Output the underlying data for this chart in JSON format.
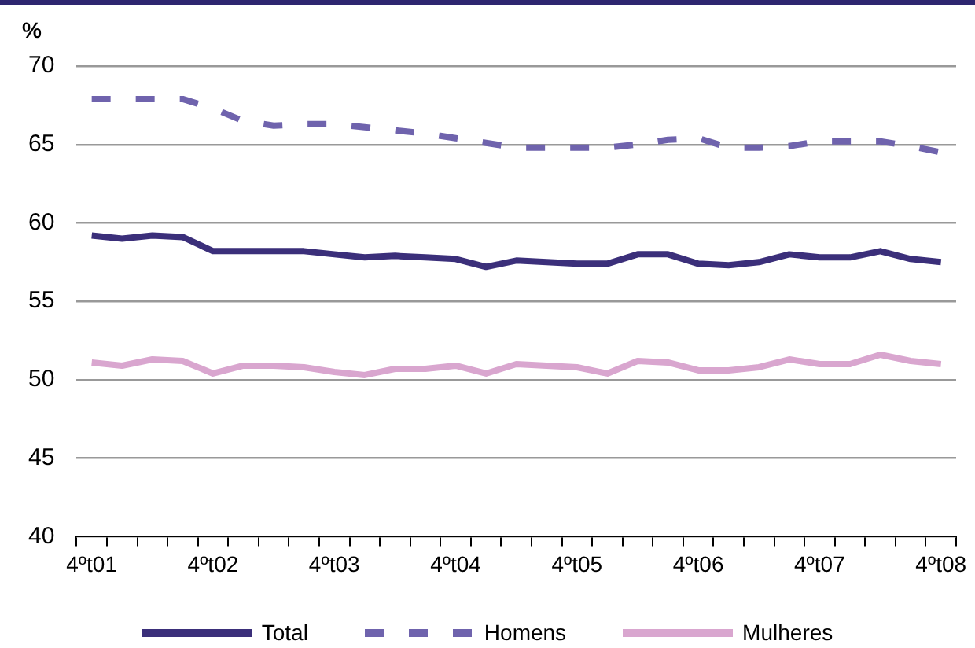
{
  "chart_data": {
    "type": "line",
    "ylabel": "%",
    "categories": [
      "4ºt01",
      null,
      null,
      null,
      "4ºt02",
      null,
      null,
      null,
      "4ºt03",
      null,
      null,
      null,
      "4ºt04",
      null,
      null,
      null,
      "4ºt05",
      null,
      null,
      null,
      "4ºt06",
      null,
      null,
      null,
      "4ºt07",
      null,
      null,
      null,
      "4ºt08"
    ],
    "series": [
      {
        "name": "Total",
        "color": "#3b2f7a",
        "line_style": "solid",
        "values": [
          59.2,
          59.0,
          59.2,
          59.1,
          58.2,
          58.2,
          58.2,
          58.2,
          58.0,
          57.8,
          57.9,
          57.8,
          57.7,
          57.2,
          57.6,
          57.5,
          57.4,
          57.4,
          58.0,
          58.0,
          57.4,
          57.3,
          57.5,
          58.0,
          57.8,
          57.8,
          58.2,
          57.7,
          57.5
        ]
      },
      {
        "name": "Homens",
        "color": "#6f63ad",
        "line_style": "dashed",
        "values": [
          67.9,
          67.9,
          67.9,
          67.9,
          67.3,
          66.5,
          66.2,
          66.3,
          66.3,
          66.1,
          65.9,
          65.7,
          65.4,
          65.1,
          64.8,
          64.8,
          64.8,
          64.8,
          65.0,
          65.3,
          65.4,
          64.8,
          64.8,
          64.9,
          65.2,
          65.2,
          65.2,
          64.9,
          64.5
        ]
      },
      {
        "name": "Mulheres",
        "color": "#d9a6cf",
        "line_style": "solid",
        "values": [
          51.1,
          50.9,
          51.3,
          51.2,
          50.4,
          50.9,
          50.9,
          50.8,
          50.5,
          50.3,
          50.7,
          50.7,
          50.9,
          50.4,
          51.0,
          50.9,
          50.8,
          50.4,
          51.2,
          51.1,
          50.6,
          50.6,
          50.8,
          51.3,
          51.0,
          51.0,
          51.6,
          51.2,
          51.0
        ]
      }
    ],
    "ylim": [
      40,
      70
    ],
    "yticks": [
      40,
      45,
      50,
      55,
      60,
      65,
      70
    ],
    "grid": "y",
    "legend": "bottom",
    "marker": "none"
  }
}
